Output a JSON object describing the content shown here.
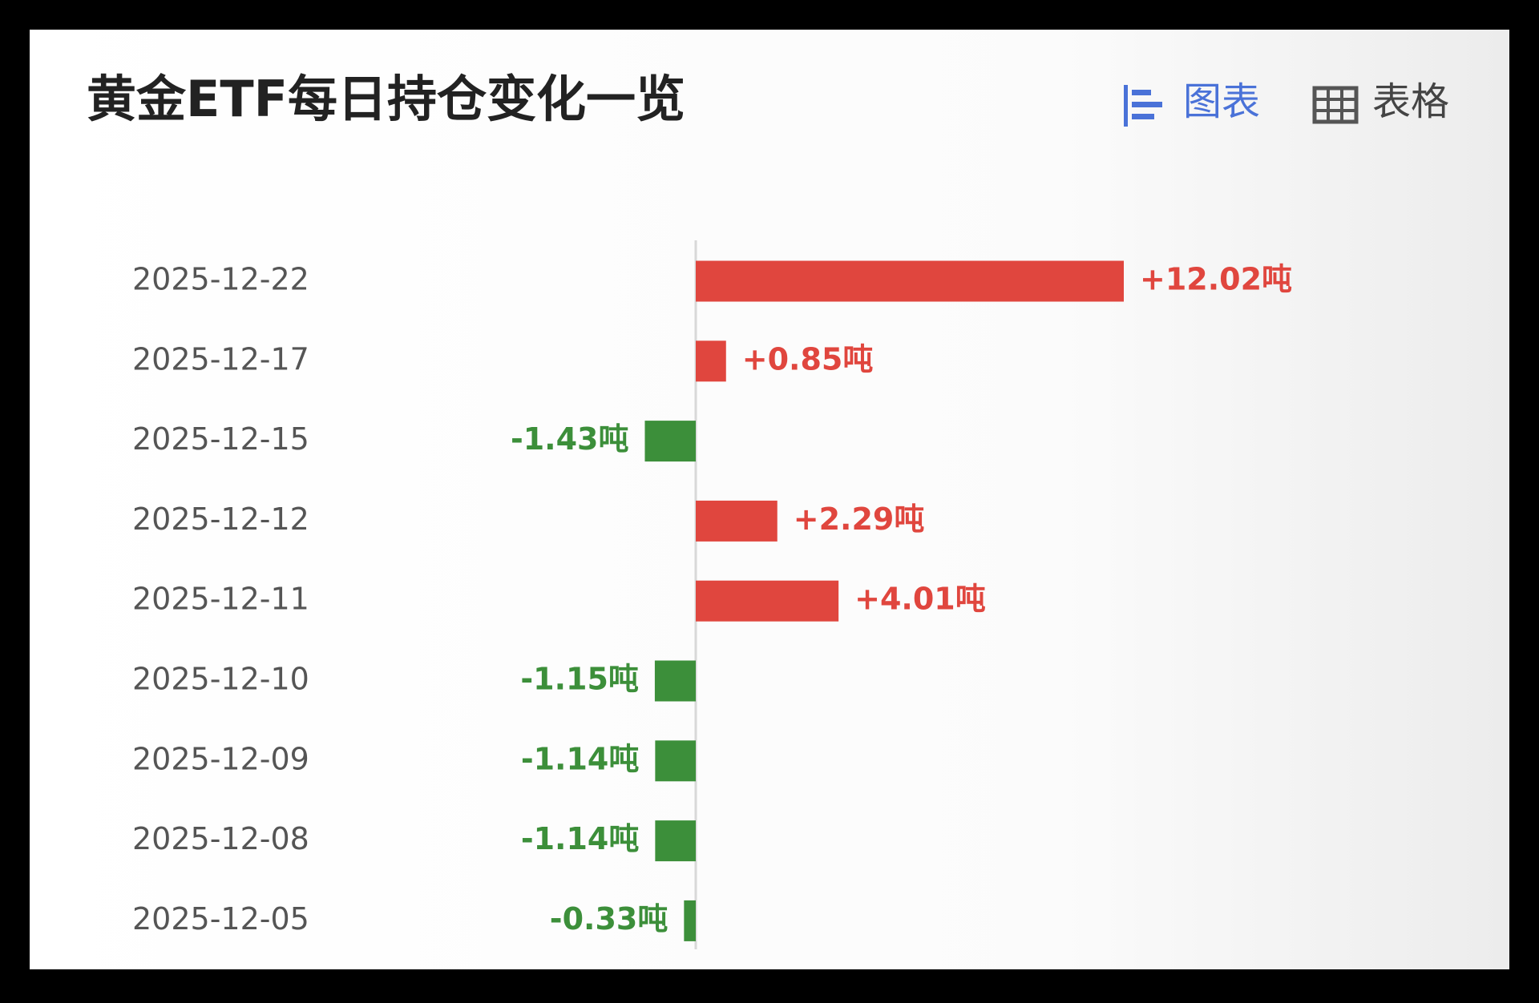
{
  "chart_data": {
    "type": "hbar",
    "title": "黄金ETF每日持仓变化一览",
    "categories": [
      "2025-12-22",
      "2025-12-17",
      "2025-12-15",
      "2025-12-12",
      "2025-12-11",
      "2025-12-10",
      "2025-12-09",
      "2025-12-08",
      "2025-12-05"
    ],
    "values": [
      12.02,
      0.85,
      -1.43,
      2.29,
      4.01,
      -1.15,
      -1.14,
      -1.14,
      -0.33
    ],
    "value_labels": [
      "+12.02吨",
      "+0.85吨",
      "-1.43吨",
      "+2.29吨",
      "+4.01吨",
      "-1.15吨",
      "-1.14吨",
      "-1.14吨",
      "-0.33吨"
    ],
    "positive_color": "#e0463e",
    "negative_color": "#3c8f3a"
  },
  "tabs": [
    "图表",
    "表格"
  ]
}
